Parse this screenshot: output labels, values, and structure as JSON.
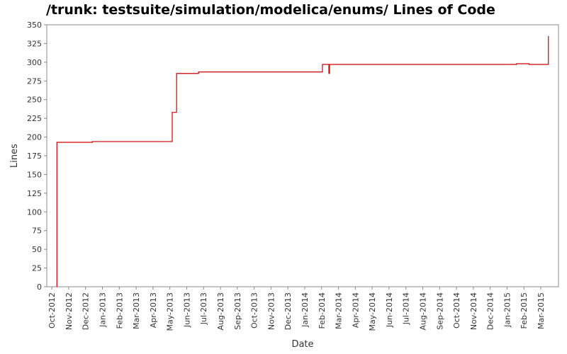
{
  "chart_data": {
    "type": "line",
    "title": "/trunk: testsuite/simulation/modelica/enums/ Lines of Code",
    "x_label": "Date",
    "y_label": "Lines",
    "x": [
      0.29,
      0.3,
      2.4,
      7.14,
      7.4,
      8.7,
      16.05,
      16.43,
      16.47,
      27.56,
      28.3,
      29.45
    ],
    "series": [
      {
        "name": "Lines",
        "color": "#cc0000",
        "values": [
          0,
          193,
          194,
          233,
          285,
          287,
          297,
          285,
          297,
          298,
          297,
          335
        ]
      }
    ],
    "xlim": [
      -0.3,
      30.05
    ],
    "xticks": [
      {
        "value": 0,
        "label": "Oct-2012"
      },
      {
        "value": 1,
        "label": "Nov-2012"
      },
      {
        "value": 2,
        "label": "Dec-2012"
      },
      {
        "value": 3,
        "label": "Jan-2013"
      },
      {
        "value": 4,
        "label": "Feb-2013"
      },
      {
        "value": 5,
        "label": "Mar-2013"
      },
      {
        "value": 6,
        "label": "Apr-2013"
      },
      {
        "value": 7,
        "label": "May-2013"
      },
      {
        "value": 8,
        "label": "Jun-2013"
      },
      {
        "value": 9,
        "label": "Jul-2013"
      },
      {
        "value": 10,
        "label": "Aug-2013"
      },
      {
        "value": 11,
        "label": "Sep-2013"
      },
      {
        "value": 12,
        "label": "Oct-2013"
      },
      {
        "value": 13,
        "label": "Nov-2013"
      },
      {
        "value": 14,
        "label": "Dec-2013"
      },
      {
        "value": 15,
        "label": "Jan-2014"
      },
      {
        "value": 16,
        "label": "Feb-2014"
      },
      {
        "value": 17,
        "label": "Mar-2014"
      },
      {
        "value": 18,
        "label": "Apr-2014"
      },
      {
        "value": 19,
        "label": "May-2014"
      },
      {
        "value": 20,
        "label": "Jun-2014"
      },
      {
        "value": 21,
        "label": "Jul-2014"
      },
      {
        "value": 22,
        "label": "Aug-2014"
      },
      {
        "value": 23,
        "label": "Sep-2014"
      },
      {
        "value": 24,
        "label": "Oct-2014"
      },
      {
        "value": 25,
        "label": "Nov-2014"
      },
      {
        "value": 26,
        "label": "Dec-2014"
      },
      {
        "value": 27,
        "label": "Jan-2015"
      },
      {
        "value": 28,
        "label": "Feb-2015"
      },
      {
        "value": 29,
        "label": "Mar-2015"
      }
    ],
    "ylim": [
      0,
      350
    ],
    "yticks": [
      0,
      25,
      50,
      75,
      100,
      125,
      150,
      175,
      200,
      225,
      250,
      275,
      300,
      325,
      350
    ],
    "step": true
  }
}
